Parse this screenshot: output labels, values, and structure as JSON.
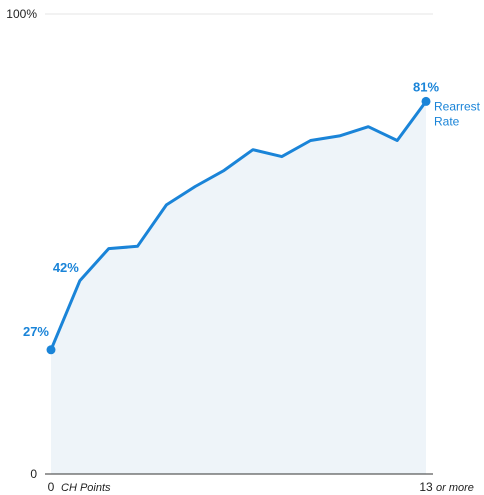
{
  "chart_data": {
    "type": "area",
    "x": [
      0,
      1,
      2,
      3,
      4,
      5,
      6,
      7,
      8,
      9,
      10,
      11,
      12,
      13
    ],
    "series": [
      {
        "name": "Rearrest Rate",
        "values": [
          27,
          42,
          49,
          49.5,
          58.5,
          62.5,
          66,
          70.5,
          69,
          72.5,
          73.5,
          75.5,
          72.5,
          81
        ]
      }
    ],
    "xlim": [
      0,
      13
    ],
    "ylim": [
      0,
      100
    ],
    "x_tick_labels": [
      {
        "value": "0",
        "suffix": "CH Points"
      },
      {
        "value": "13",
        "suffix": "or more"
      }
    ],
    "y_tick_labels": [
      "0",
      "100%"
    ],
    "data_labels": [
      {
        "x": 0,
        "text": "27%"
      },
      {
        "x": 1,
        "text": "42%"
      },
      {
        "x": 13,
        "text": "81%"
      }
    ],
    "series_label": [
      "Rearrest",
      "Rate"
    ],
    "colors": {
      "line": "#1a84d8",
      "area": "#eef4f9",
      "axis": "#333333",
      "grid": "#e6e6e6"
    },
    "grid": true
  }
}
